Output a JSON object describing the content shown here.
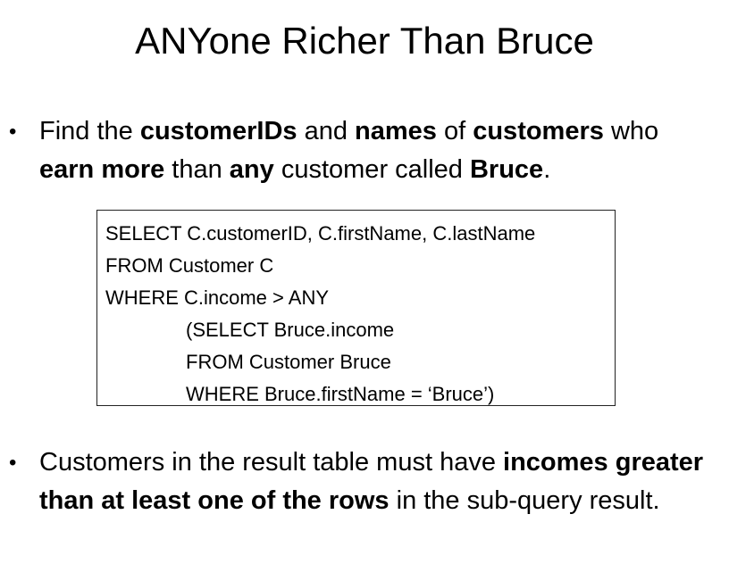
{
  "title": "ANYone Richer Than Bruce",
  "bullet1": {
    "p1": "Find the ",
    "b1": "customerIDs",
    "p2": " and ",
    "b2": "names",
    "p3": " of ",
    "b3": "customers",
    "p4": " who ",
    "b4": "earn more",
    "p5": " than ",
    "b5": "any",
    "p6": " customer called ",
    "b6": "Bruce",
    "p7": "."
  },
  "code": {
    "line1": "SELECT C.customerID, C.firstName, C.lastName",
    "line2": "FROM Customer C",
    "line3": "WHERE C.income > ANY",
    "line4": "(SELECT Bruce.income",
    "line5": "FROM Customer Bruce",
    "line6": "WHERE Bruce.firstName = ‘Bruce’)"
  },
  "bullet2": {
    "p1": "Customers in the result table must have ",
    "b1": "incomes greater than at least one of the rows",
    "p2": " in the sub-query result."
  },
  "bullet_glyph": "•"
}
